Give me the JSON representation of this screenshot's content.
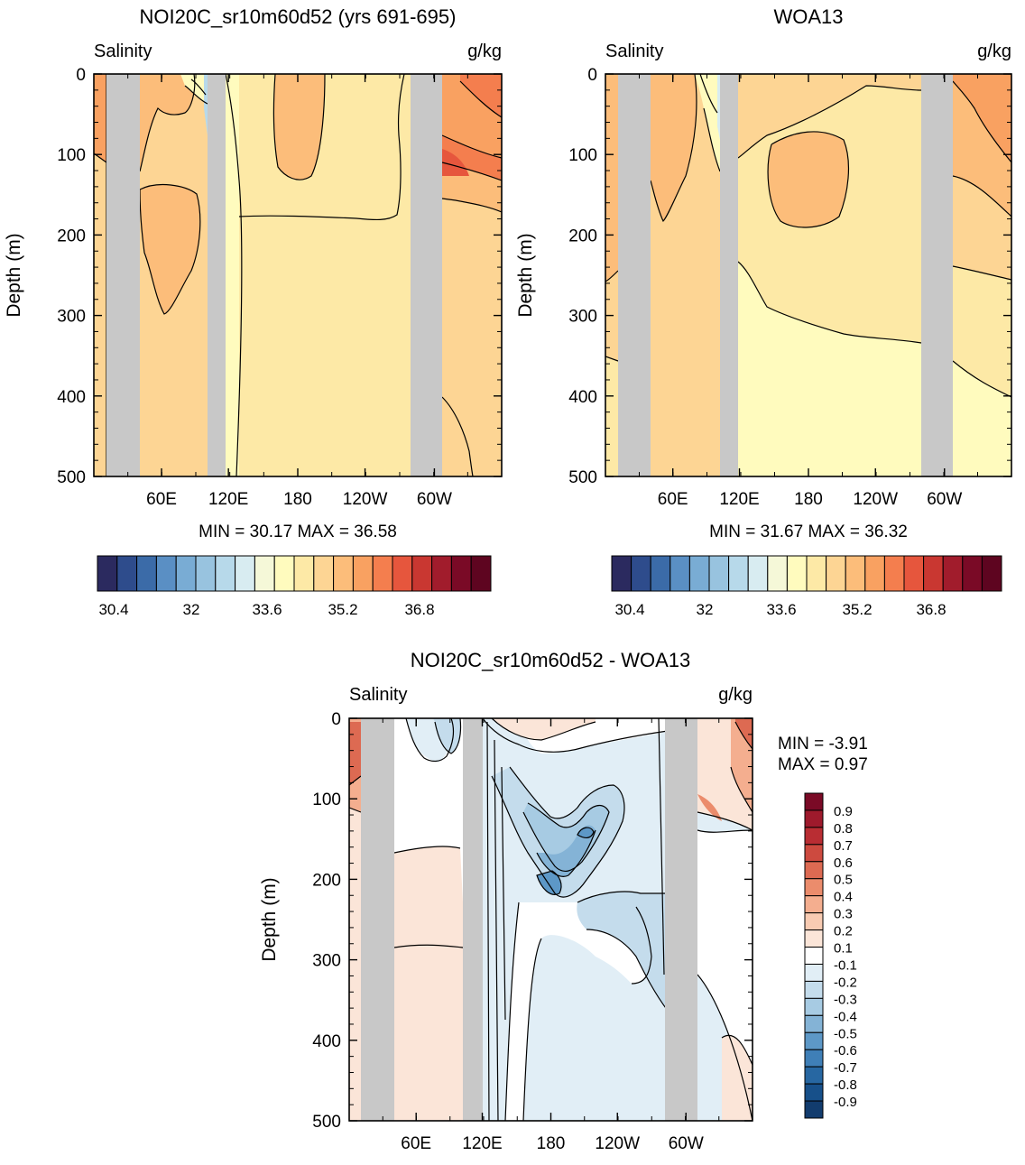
{
  "panels": [
    {
      "title": "NOI20C_sr10m60d52 (yrs 691-695)",
      "left_label": "Salinity",
      "right_label": "g/kg",
      "ylabel": "Depth (m)",
      "stats": "MIN =  30.17  MAX =  36.58"
    },
    {
      "title": "WOA13",
      "left_label": "Salinity",
      "right_label": "g/kg",
      "ylabel": "Depth (m)",
      "stats": "MIN =  31.67  MAX =  36.32"
    },
    {
      "title": "NOI20C_sr10m60d52 - WOA13",
      "left_label": "Salinity",
      "right_label": "g/kg",
      "ylabel": "Depth (m)",
      "stats_min": "MIN =  -3.91",
      "stats_max": "MAX =   0.97"
    }
  ],
  "axes": {
    "y_ticks": [
      "0",
      "100",
      "200",
      "300",
      "400",
      "500"
    ],
    "x_ticks": [
      "60E",
      "120E",
      "180",
      "120W",
      "60W"
    ]
  },
  "colorbar_main": {
    "labels": [
      "30.4",
      "32",
      "33.6",
      "35.2",
      "36.8"
    ],
    "colors": [
      "#2b2a5f",
      "#2e4c8c",
      "#3b6ba8",
      "#5a8fc4",
      "#79acd4",
      "#98c3df",
      "#b7d9ea",
      "#d8ecf1",
      "#f5f8d8",
      "#fffbbe",
      "#fde9a6",
      "#fdd594",
      "#fcbd7a",
      "#f9a161",
      "#f47e4e",
      "#e6563d",
      "#c93731",
      "#a11c2c",
      "#7a0a26",
      "#5e0520"
    ]
  },
  "colorbar_diff": {
    "labels": [
      "0.9",
      "0.8",
      "0.7",
      "0.6",
      "0.5",
      "0.4",
      "0.3",
      "0.2",
      "0.1",
      "-0.1",
      "-0.2",
      "-0.3",
      "-0.4",
      "-0.5",
      "-0.6",
      "-0.7",
      "-0.8",
      "-0.9"
    ],
    "colors": [
      "#7a0a26",
      "#9e1a2c",
      "#b92d33",
      "#cd4a3f",
      "#dd6a52",
      "#eb8c6c",
      "#f4ae8f",
      "#f8cbb2",
      "#fbe5d8",
      "#ffffff",
      "#e1eef6",
      "#c4dcec",
      "#a7cbe3",
      "#84b3d6",
      "#5d98c7",
      "#3f7fb7",
      "#2767a2",
      "#17508a",
      "#123c6e"
    ]
  },
  "chart_data": [
    {
      "type": "heatmap",
      "title": "NOI20C_sr10m60d52 (yrs 691-695)",
      "variable": "Salinity",
      "units": "g/kg",
      "ylabel": "Depth (m)",
      "ylim": [
        500,
        0
      ],
      "y_ticks": [
        0,
        100,
        200,
        300,
        400,
        500
      ],
      "x_ticks": [
        "60E",
        "120E",
        "180",
        "120W",
        "60W"
      ],
      "min": 30.17,
      "max": 36.58,
      "colorbar_range": [
        30.4,
        36.8
      ]
    },
    {
      "type": "heatmap",
      "title": "WOA13",
      "variable": "Salinity",
      "units": "g/kg",
      "ylabel": "Depth (m)",
      "ylim": [
        500,
        0
      ],
      "y_ticks": [
        0,
        100,
        200,
        300,
        400,
        500
      ],
      "x_ticks": [
        "60E",
        "120E",
        "180",
        "120W",
        "60W"
      ],
      "min": 31.67,
      "max": 36.32,
      "colorbar_range": [
        30.4,
        36.8
      ]
    },
    {
      "type": "heatmap",
      "title": "NOI20C_sr10m60d52 - WOA13",
      "variable": "Salinity",
      "units": "g/kg",
      "ylabel": "Depth (m)",
      "ylim": [
        500,
        0
      ],
      "y_ticks": [
        0,
        100,
        200,
        300,
        400,
        500
      ],
      "x_ticks": [
        "60E",
        "120E",
        "180",
        "120W",
        "60W"
      ],
      "min": -3.91,
      "max": 0.97,
      "colorbar_range": [
        -0.9,
        0.9
      ]
    }
  ]
}
